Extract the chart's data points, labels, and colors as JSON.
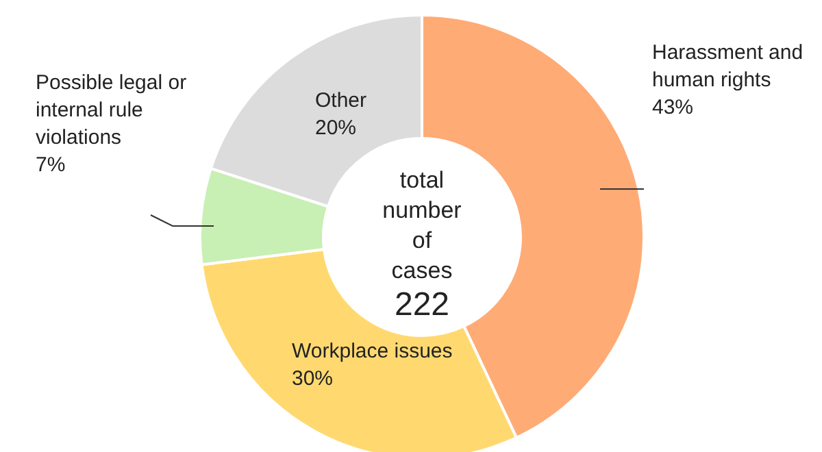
{
  "chart_data": {
    "type": "donut",
    "categories": [
      "Harassment and human rights",
      "Workplace issues",
      "Possible legal or internal rule violations",
      "Other"
    ],
    "values": [
      43,
      30,
      7,
      20
    ],
    "value_labels": [
      "43%",
      "30%",
      "7%",
      "20%"
    ],
    "colors": [
      "#ffab76",
      "#ffd970",
      "#c8efb4",
      "#dcdcdc"
    ],
    "annotations": [
      "total number of cases",
      "222"
    ],
    "legend": false
  }
}
